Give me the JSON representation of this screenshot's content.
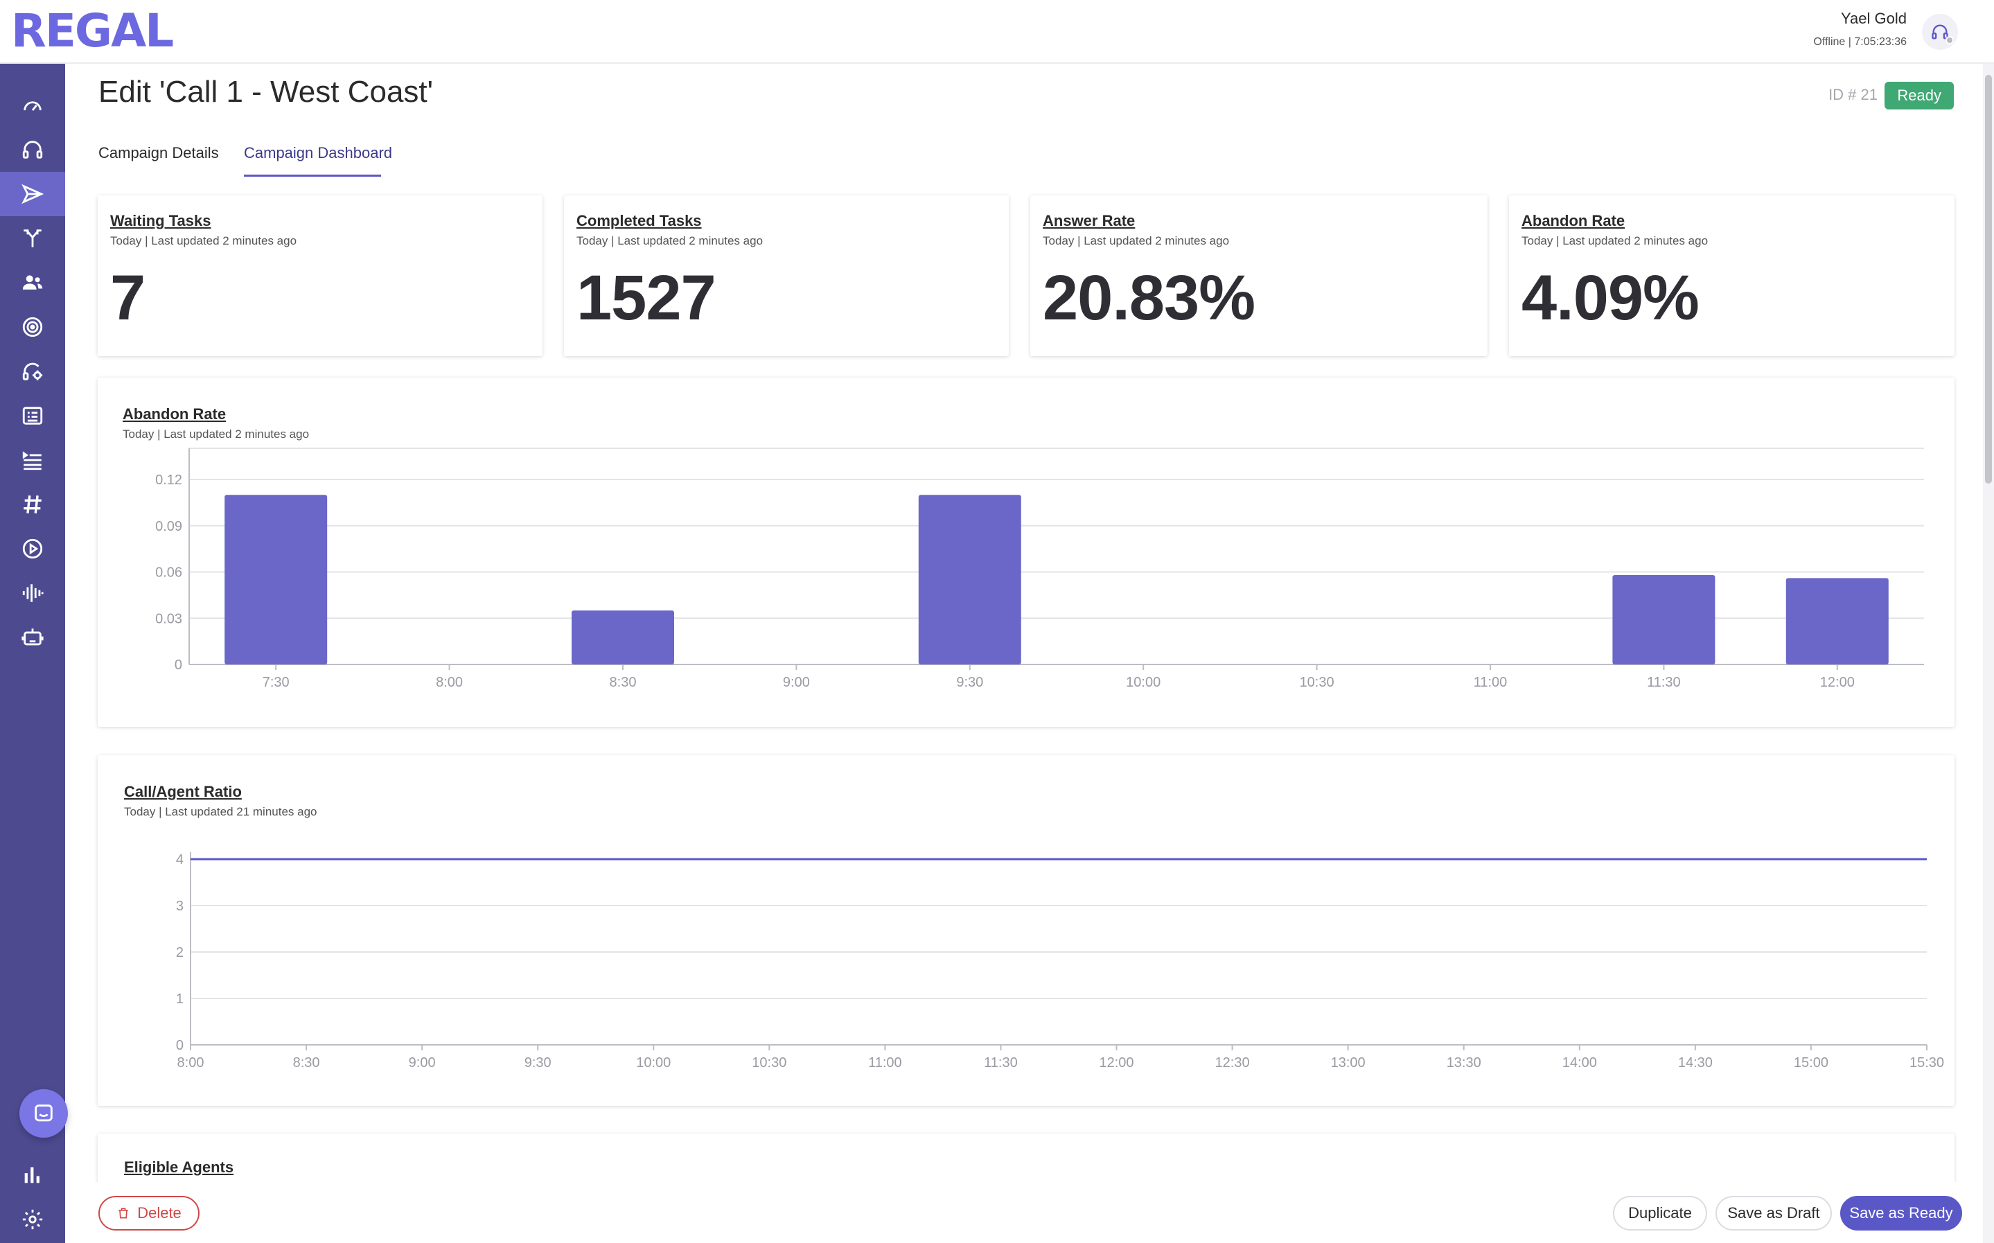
{
  "app": {
    "logo": "REGAL"
  },
  "user": {
    "name": "Yael Gold",
    "status": "Offline",
    "timer": "7:05:23:36",
    "status_line": "Offline | 7:05:23:36"
  },
  "sidebar": {
    "items": [
      {
        "icon": "speedometer-icon"
      },
      {
        "icon": "headset-icon"
      },
      {
        "icon": "send-icon",
        "active": true
      },
      {
        "icon": "branch-icon"
      },
      {
        "icon": "users-icon"
      },
      {
        "icon": "target-icon"
      },
      {
        "icon": "headset-gear-icon"
      },
      {
        "icon": "card-list-icon"
      },
      {
        "icon": "list-icon"
      },
      {
        "icon": "hash-icon"
      },
      {
        "icon": "play-circle-icon"
      },
      {
        "icon": "waveform-icon"
      },
      {
        "icon": "robot-icon"
      },
      {
        "icon": "bar-chart-icon"
      },
      {
        "icon": "gear-icon"
      }
    ]
  },
  "page": {
    "title": "Edit 'Call 1 - West Coast'",
    "id_label": "ID # 21",
    "status_badge": "Ready"
  },
  "tabs": [
    {
      "label": "Campaign Details",
      "active": false
    },
    {
      "label": "Campaign Dashboard",
      "active": true
    }
  ],
  "metrics": [
    {
      "title": "Waiting Tasks",
      "subtitle": "Today | Last updated 2 minutes ago",
      "value": "7"
    },
    {
      "title": "Completed Tasks",
      "subtitle": "Today | Last updated 2 minutes ago",
      "value": "1527"
    },
    {
      "title": "Answer Rate",
      "subtitle": "Today | Last updated 2 minutes ago",
      "value": "20.83%"
    },
    {
      "title": "Abandon Rate",
      "subtitle": "Today | Last updated 2 minutes ago",
      "value": "4.09%"
    }
  ],
  "charts_meta": [
    {
      "title": "Abandon Rate",
      "subtitle": "Today | Last updated 2 minutes ago"
    },
    {
      "title": "Call/Agent Ratio",
      "subtitle": "Today | Last updated 21 minutes ago"
    },
    {
      "title": "Eligible Agents"
    }
  ],
  "chart_data": [
    {
      "type": "bar",
      "title": "Abandon Rate",
      "categories": [
        "7:30",
        "8:00",
        "8:30",
        "9:00",
        "9:30",
        "10:00",
        "10:30",
        "11:00",
        "11:30",
        "12:00"
      ],
      "values": [
        0.11,
        0,
        0.035,
        0,
        0.11,
        0,
        0,
        0,
        0.058,
        0.056
      ],
      "yticks": [
        "0",
        "0.03",
        "0.06",
        "0.09",
        "0.12"
      ],
      "ylim": [
        0,
        0.12
      ],
      "color": "#6a67c9",
      "grid": true
    },
    {
      "type": "line",
      "title": "Call/Agent Ratio",
      "x": [
        "8:00",
        "8:30",
        "9:00",
        "9:30",
        "10:00",
        "10:30",
        "11:00",
        "11:30",
        "12:00",
        "12:30",
        "13:00",
        "13:30",
        "14:00",
        "14:30",
        "15:00",
        "15:30"
      ],
      "values": [
        4,
        4,
        4,
        4,
        4,
        4,
        4,
        4,
        4,
        4,
        4,
        4,
        4,
        4,
        4,
        4
      ],
      "yticks": [
        "0",
        "1",
        "2",
        "3",
        "4"
      ],
      "ylim": [
        0,
        4
      ],
      "color": "#5a57c7",
      "grid": true
    }
  ],
  "actions": {
    "delete_label": "Delete",
    "duplicate_label": "Duplicate",
    "draft_label": "Save as Draft",
    "ready_label": "Save as Ready"
  },
  "colors": {
    "sidebar": "#4d4a8f",
    "sidebar_active": "#6a67c9",
    "accent": "#5a57c7",
    "ready": "#3fa873",
    "danger": "#d04848"
  }
}
